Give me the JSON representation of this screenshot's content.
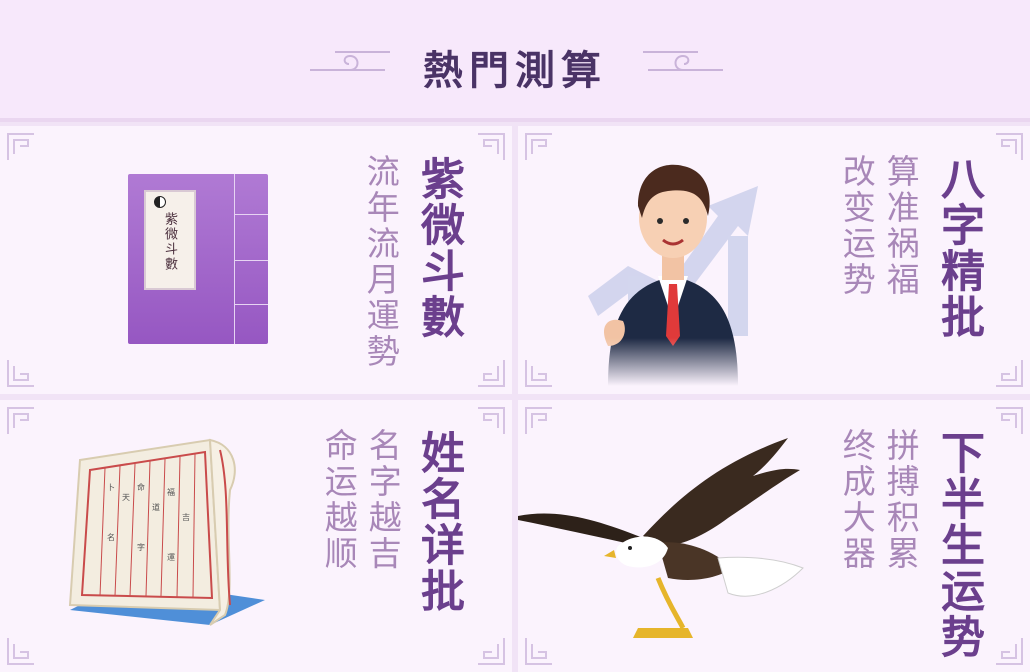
{
  "header": {
    "title": "熱門測算"
  },
  "cards": [
    {
      "title": "紫微斗數",
      "subtitle_lines": [
        "流年流月運勢"
      ],
      "book_label": "紫微斗數"
    },
    {
      "title": "八字精批",
      "subtitle_lines": [
        "算准祸福",
        "改变运势"
      ]
    },
    {
      "title": "姓名详批",
      "subtitle_lines": [
        "名字越吉",
        "命运越顺"
      ]
    },
    {
      "title": "下半生运势",
      "subtitle_lines": [
        "拼搏积累",
        "终成大器"
      ]
    }
  ],
  "icons": [
    "cloud-ornament-icon",
    "corner-ornament-icon",
    "yin-yang-icon"
  ],
  "colors": {
    "title": "#4a3366",
    "card_title": "#6b3f8d",
    "subtitle": "#a887b8",
    "card_bg": "#fbf3fd",
    "page_bg": "#f1e3f6"
  }
}
